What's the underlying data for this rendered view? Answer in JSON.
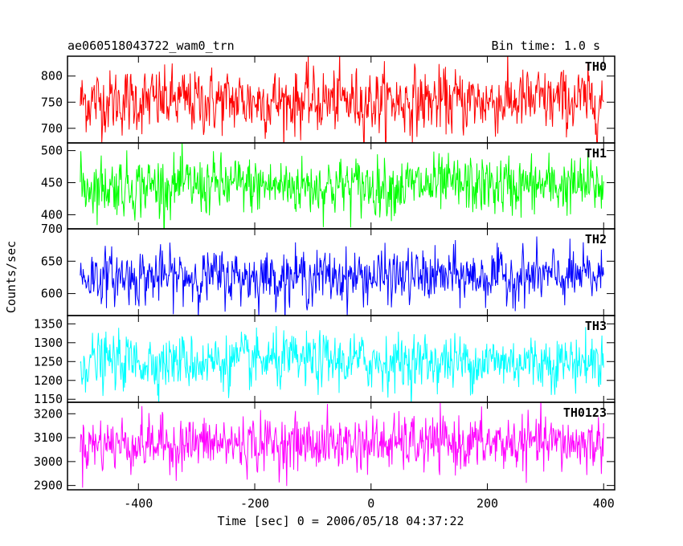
{
  "header": {
    "left_title": "ae060518043722_wam0_trn",
    "right_title": "Bin time: 1.0 s"
  },
  "ylabel": "Counts/sec",
  "xlabel": "Time [sec] 0 = 2006/05/18 04:37:22",
  "chart_data": [
    {
      "type": "line",
      "series": [
        {
          "name": "TH0",
          "color": "#ff0000",
          "mean": 752,
          "std": 30
        }
      ],
      "x_range": [
        -500,
        400
      ],
      "ylim": [
        672,
        838
      ],
      "yticks": [
        700,
        750,
        800
      ],
      "xticks": [
        -400,
        -200,
        0,
        200,
        400
      ]
    },
    {
      "type": "line",
      "series": [
        {
          "name": "TH1",
          "color": "#00ff00",
          "mean": 445,
          "std": 22
        }
      ],
      "x_range": [
        -500,
        400
      ],
      "ylim": [
        378,
        512
      ],
      "yticks": [
        400,
        450,
        500
      ],
      "xticks": [
        -400,
        -200,
        0,
        200,
        400
      ]
    },
    {
      "type": "line",
      "series": [
        {
          "name": "TH2",
          "color": "#0000ff",
          "mean": 626,
          "std": 20
        }
      ],
      "x_range": [
        -500,
        400
      ],
      "ylim": [
        566,
        700
      ],
      "yticks": [
        600,
        650,
        700
      ],
      "xticks": [
        -400,
        -200,
        0,
        200,
        400
      ]
    },
    {
      "type": "line",
      "series": [
        {
          "name": "TH3",
          "color": "#00ffff",
          "mean": 1250,
          "std": 35
        }
      ],
      "x_range": [
        -500,
        400
      ],
      "ylim": [
        1142,
        1372
      ],
      "yticks": [
        1150,
        1200,
        1250,
        1300,
        1350
      ],
      "xticks": [
        -400,
        -200,
        0,
        200,
        400
      ]
    },
    {
      "type": "line",
      "series": [
        {
          "name": "TH0123",
          "color": "#ff00ff",
          "mean": 3075,
          "std": 55
        }
      ],
      "x_range": [
        -500,
        400
      ],
      "ylim": [
        2882,
        3248
      ],
      "yticks": [
        2900,
        3000,
        3100,
        3200
      ],
      "xticks": [
        -400,
        -200,
        0,
        200,
        400
      ],
      "xtick_labels": [
        "-400",
        "-200",
        "0",
        "200",
        "400"
      ]
    }
  ]
}
